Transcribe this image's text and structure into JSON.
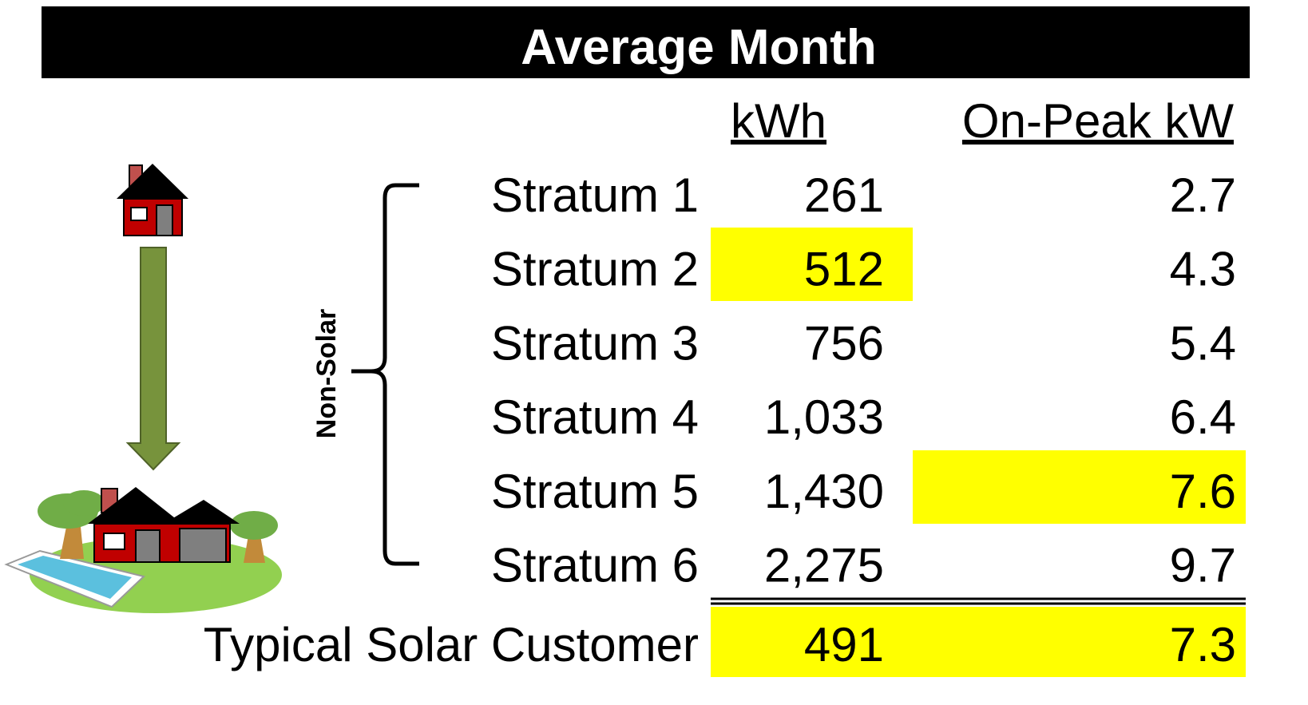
{
  "title": "Average Month",
  "columns": [
    "kWh",
    "On-Peak kW"
  ],
  "group_label": "Non-Solar",
  "rows": [
    {
      "label": "Stratum 1",
      "kwh": "261",
      "kw": "2.7"
    },
    {
      "label": "Stratum 2",
      "kwh": "512",
      "kw": "4.3"
    },
    {
      "label": "Stratum 3",
      "kwh": "756",
      "kw": "5.4"
    },
    {
      "label": "Stratum 4",
      "kwh": "1,033",
      "kw": "6.4"
    },
    {
      "label": "Stratum 5",
      "kwh": "1,430",
      "kw": "7.6"
    },
    {
      "label": "Stratum 6",
      "kwh": "2,275",
      "kw": "9.7"
    }
  ],
  "total": {
    "label": "Typical Solar Customer",
    "kwh": "491",
    "kw": "7.3"
  }
}
